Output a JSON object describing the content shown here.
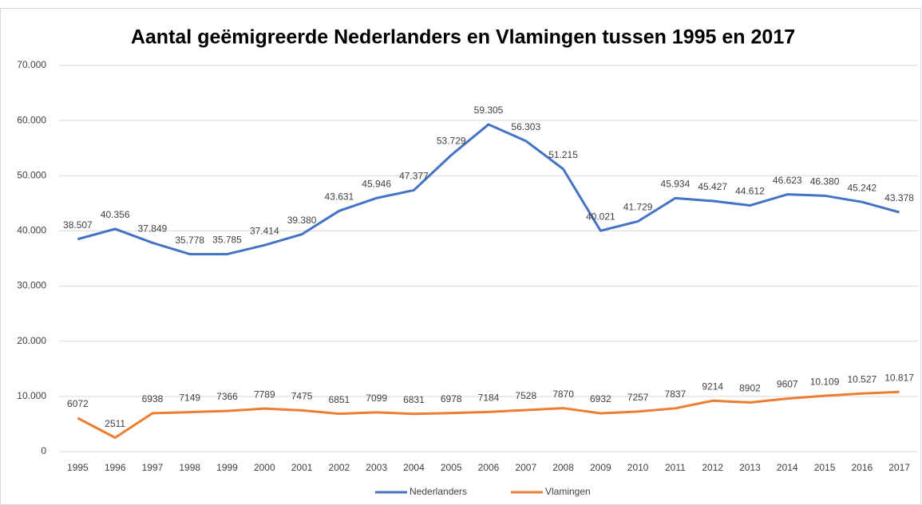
{
  "chart_data": {
    "type": "line",
    "title": "Aantal geëmigreerde Nederlanders en Vlamingen tussen 1995 en 2017",
    "categories": [
      "1995",
      "1996",
      "1997",
      "1998",
      "1999",
      "2000",
      "2001",
      "2002",
      "2003",
      "2004",
      "2005",
      "2006",
      "2007",
      "2008",
      "2009",
      "2010",
      "2011",
      "2012",
      "2013",
      "2014",
      "2015",
      "2016",
      "2017"
    ],
    "series": [
      {
        "name": "Nederlanders",
        "color": "#4472c4",
        "values": [
          38507,
          40356,
          37849,
          35778,
          35785,
          37414,
          39380,
          43631,
          45946,
          47377,
          53729,
          59305,
          56303,
          51215,
          40021,
          41729,
          45934,
          45427,
          44612,
          46623,
          46380,
          45242,
          43378
        ],
        "value_labels": [
          "38.507",
          "40.356",
          "37.849",
          "35.778",
          "35.785",
          "37.414",
          "39.380",
          "43.631",
          "45.946",
          "47.377",
          "53.729",
          "59.305",
          "56.303",
          "51.215",
          "40.021",
          "41.729",
          "45.934",
          "45.427",
          "44.612",
          "46.623",
          "46.380",
          "45.242",
          "43.378"
        ]
      },
      {
        "name": "Vlamingen",
        "color": "#ed7d31",
        "values": [
          6072,
          2511,
          6938,
          7149,
          7366,
          7789,
          7475,
          6851,
          7099,
          6831,
          6978,
          7184,
          7528,
          7870,
          6932,
          7257,
          7837,
          9214,
          8902,
          9607,
          10109,
          10527,
          10817
        ],
        "value_labels": [
          "6072",
          "2511",
          "6938",
          "7149",
          "7366",
          "7789",
          "7475",
          "6851",
          "7099",
          "6831",
          "6978",
          "7184",
          "7528",
          "7870",
          "6932",
          "7257",
          "7837",
          "9214",
          "8902",
          "9607",
          "10.109",
          "10.527",
          "10.817"
        ]
      }
    ],
    "ylim": [
      0,
      70000
    ],
    "yticks": [
      0,
      {
        "value": 10000,
        "label": "10.000"
      },
      {
        "value": 20000,
        "label": "20.000"
      },
      {
        "value": 30000,
        "label": "30.000"
      },
      {
        "value": 40000,
        "label": "40.000"
      },
      {
        "value": 50000,
        "label": "50.000"
      },
      {
        "value": 60000,
        "label": "60.000"
      },
      {
        "value": 70000,
        "label": "70.000"
      }
    ],
    "grid": true,
    "legend": "bottom"
  }
}
